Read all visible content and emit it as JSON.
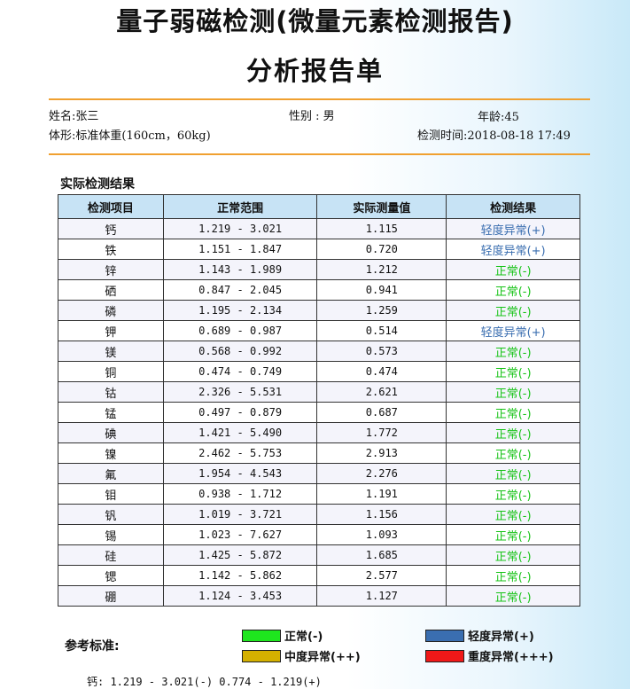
{
  "title": "量子弱磁检测(微量元素检测报告)",
  "subtitle": "分析报告单",
  "patient": {
    "name": "姓名:张三",
    "gender": "性别 : 男",
    "age": "年龄:45",
    "body": "体形:标准体重(160cm，60kg)",
    "test_time": "检测时间:2018-08-18 17:49"
  },
  "section_title": "实际检测结果",
  "table": {
    "headers": [
      "检测项目",
      "正常范围",
      "实际测量值",
      "检测结果"
    ],
    "rows": [
      {
        "item": "钙",
        "range": "1.219 - 3.021",
        "value": "1.115",
        "result": "轻度异常(+)",
        "status": "mild"
      },
      {
        "item": "铁",
        "range": "1.151 - 1.847",
        "value": "0.720",
        "result": "轻度异常(+)",
        "status": "mild"
      },
      {
        "item": "锌",
        "range": "1.143 - 1.989",
        "value": "1.212",
        "result": "正常(-)",
        "status": "normal"
      },
      {
        "item": "硒",
        "range": "0.847 - 2.045",
        "value": "0.941",
        "result": "正常(-)",
        "status": "normal"
      },
      {
        "item": "磷",
        "range": "1.195 - 2.134",
        "value": "1.259",
        "result": "正常(-)",
        "status": "normal"
      },
      {
        "item": "钾",
        "range": "0.689 - 0.987",
        "value": "0.514",
        "result": "轻度异常(+)",
        "status": "mild"
      },
      {
        "item": "镁",
        "range": "0.568 - 0.992",
        "value": "0.573",
        "result": "正常(-)",
        "status": "normal"
      },
      {
        "item": "铜",
        "range": "0.474 - 0.749",
        "value": "0.474",
        "result": "正常(-)",
        "status": "normal"
      },
      {
        "item": "钴",
        "range": "2.326 - 5.531",
        "value": "2.621",
        "result": "正常(-)",
        "status": "normal"
      },
      {
        "item": "锰",
        "range": "0.497 - 0.879",
        "value": "0.687",
        "result": "正常(-)",
        "status": "normal"
      },
      {
        "item": "碘",
        "range": "1.421 - 5.490",
        "value": "1.772",
        "result": "正常(-)",
        "status": "normal"
      },
      {
        "item": "镍",
        "range": "2.462 - 5.753",
        "value": "2.913",
        "result": "正常(-)",
        "status": "normal"
      },
      {
        "item": "氟",
        "range": "1.954 - 4.543",
        "value": "2.276",
        "result": "正常(-)",
        "status": "normal"
      },
      {
        "item": "钼",
        "range": "0.938 - 1.712",
        "value": "1.191",
        "result": "正常(-)",
        "status": "normal"
      },
      {
        "item": "钒",
        "range": "1.019 - 3.721",
        "value": "1.156",
        "result": "正常(-)",
        "status": "normal"
      },
      {
        "item": "锡",
        "range": "1.023 - 7.627",
        "value": "1.093",
        "result": "正常(-)",
        "status": "normal"
      },
      {
        "item": "硅",
        "range": "1.425 - 5.872",
        "value": "1.685",
        "result": "正常(-)",
        "status": "normal"
      },
      {
        "item": "锶",
        "range": "1.142 - 5.862",
        "value": "2.577",
        "result": "正常(-)",
        "status": "normal"
      },
      {
        "item": "硼",
        "range": "1.124 - 3.453",
        "value": "1.127",
        "result": "正常(-)",
        "status": "normal"
      }
    ]
  },
  "legend": {
    "title": "参考标准:",
    "items": [
      {
        "label": "正常(-)",
        "color": "#1ee61e"
      },
      {
        "label": "轻度异常(+)",
        "color": "#3a6eb0"
      },
      {
        "label": "中度异常(++)",
        "color": "#d4b000"
      },
      {
        "label": "重度异常(+++)",
        "color": "#f01818"
      }
    ]
  },
  "colors": {
    "normal_text": "#17c317",
    "mild_text": "#3a6eb0",
    "accent_rule": "#f0a030",
    "header_bg": "#c7e3f5"
  },
  "footer_partial": "钙:    1.219 - 3.021(-)    0.774 - 1.219(+)"
}
